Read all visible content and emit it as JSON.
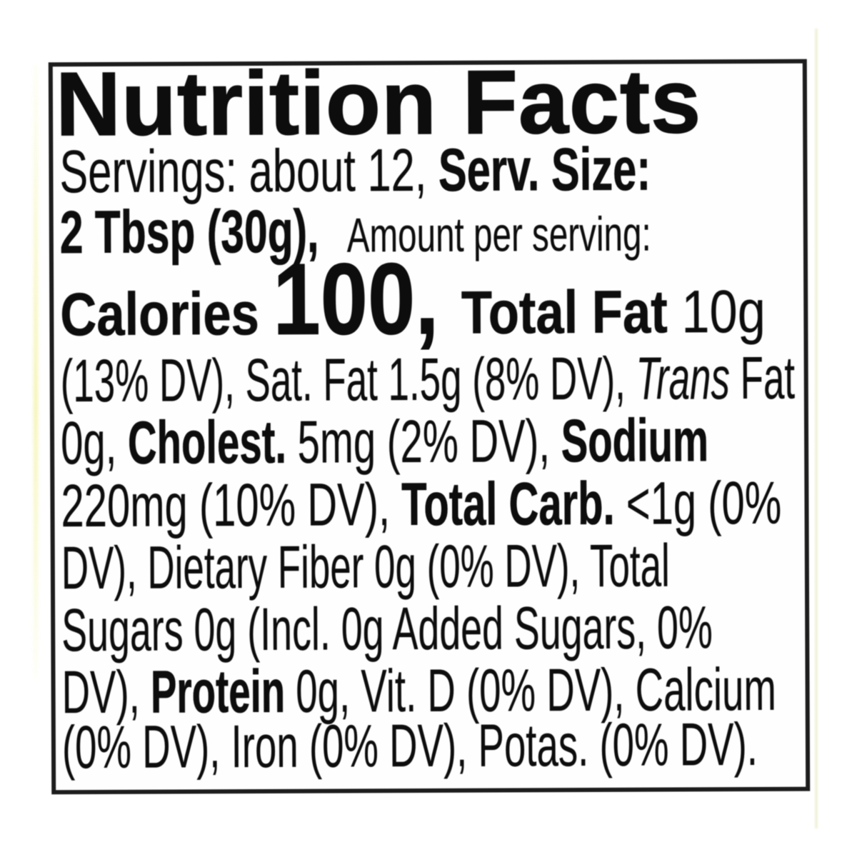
{
  "label": {
    "title": "Nutrition Facts",
    "servings": {
      "regular": "Servings: about 12, ",
      "bold": "Serv. Size:"
    },
    "serving_size": {
      "bold": "2 Tbsp (30g),",
      "small": "Amount per serving:"
    },
    "calories": {
      "word": "Calories ",
      "value": "100,",
      "fat_bold": " Total Fat ",
      "fat_value": "10g"
    },
    "fat_detail": {
      "r1": "(13% DV), Sat. Fat 1.5g (8% DV), ",
      "italic": "Trans",
      "r2": " Fat"
    },
    "cholesterol_sodium": {
      "r1": "0g, ",
      "b1": "Cholest.",
      "r2": " 5mg (2% DV), ",
      "b2": "Sodium"
    },
    "sodium_carb": {
      "r1": "220mg (10% DV), ",
      "b1": "Total Carb.",
      "r2": " <1g (0%"
    },
    "fiber": {
      "r1": "DV), Dietary Fiber 0g (0% DV), Total"
    },
    "sugars": {
      "r1": "Sugars 0g (Incl. 0g Added Sugars, 0%"
    },
    "protein_vitamins": {
      "r1": "DV), ",
      "b1": "Protein",
      "r2": " 0g, Vit. D (0% DV), Calcium"
    },
    "minerals": {
      "r1": "(0% DV), Iron (0% DV), Potas. (0% DV)."
    }
  }
}
